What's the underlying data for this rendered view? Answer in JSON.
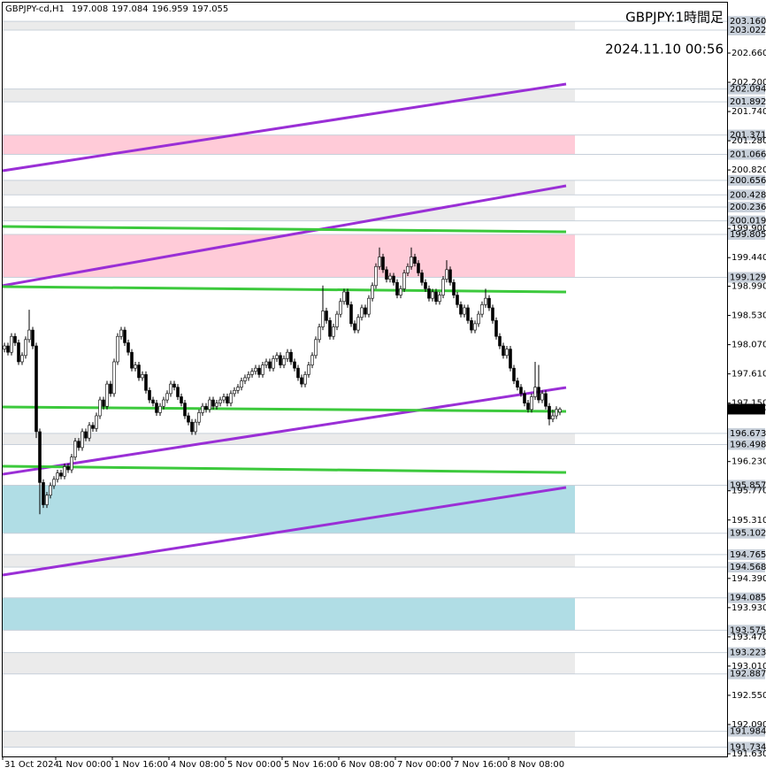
{
  "chart_data": {
    "type": "candlestick",
    "title": "GBPJPY-cd,H1",
    "annotations": [
      "GBPJPY:1時間足",
      "2024.11.10 00:56"
    ],
    "up_color": "#ffffff",
    "down_color": "#000000",
    "current_price_color": "#000000",
    "ylim": [
      191.588,
      203.454
    ],
    "yticks": [
      {
        "value": 202.66,
        "label": "202.660"
      },
      {
        "value": 202.2,
        "label": "202.200"
      },
      {
        "value": 201.74,
        "label": "201.740"
      },
      {
        "value": 201.28,
        "label": "201.280"
      },
      {
        "value": 200.82,
        "label": "200.820"
      },
      {
        "value": 199.9,
        "label": "199.900"
      },
      {
        "value": 199.44,
        "label": "199.440"
      },
      {
        "value": 198.99,
        "label": "198.990"
      },
      {
        "value": 198.53,
        "label": "198.530"
      },
      {
        "value": 198.07,
        "label": "198.070"
      },
      {
        "value": 197.61,
        "label": "197.610"
      },
      {
        "value": 197.15,
        "label": "197.150"
      },
      {
        "value": 196.23,
        "label": "196.230"
      },
      {
        "value": 195.77,
        "label": "195.770"
      },
      {
        "value": 195.31,
        "label": "195.310"
      },
      {
        "value": 194.39,
        "label": "194.390"
      },
      {
        "value": 193.93,
        "label": "193.930"
      },
      {
        "value": 193.47,
        "label": "193.470"
      },
      {
        "value": 193.01,
        "label": "193.010"
      },
      {
        "value": 192.55,
        "label": "192.550"
      },
      {
        "value": 192.09,
        "label": "192.090"
      },
      {
        "value": 191.63,
        "label": "191.630"
      }
    ],
    "xticks": [
      {
        "value": 0,
        "label": "31 Oct 2024"
      },
      {
        "value": 15,
        "label": "1 Nov 00:00"
      },
      {
        "value": 31,
        "label": "1 Nov 16:00"
      },
      {
        "value": 47,
        "label": "4 Nov 08:00"
      },
      {
        "value": 63,
        "label": "5 Nov 00:00"
      },
      {
        "value": 79,
        "label": "5 Nov 16:00"
      },
      {
        "value": 95,
        "label": "6 Nov 08:00"
      },
      {
        "value": 111,
        "label": "7 Nov 00:00"
      },
      {
        "value": 127,
        "label": "7 Nov 16:00"
      },
      {
        "value": 143,
        "label": "8 Nov 08:00"
      }
    ],
    "zones": [
      {
        "high": 203.16,
        "high_label": "203.160",
        "low": 203.022,
        "low_label": "203.022",
        "color": "#ebebeb"
      },
      {
        "high": 202.094,
        "high_label": "202.094",
        "low": 201.892,
        "low_label": "201.892",
        "color": "#ebebeb"
      },
      {
        "high": 201.371,
        "high_label": "201.371",
        "low": 201.066,
        "low_label": "201.066",
        "color": "#ffcbd8"
      },
      {
        "high": 200.656,
        "high_label": "200.656",
        "low": 200.428,
        "low_label": "200.428",
        "color": "#ebebeb"
      },
      {
        "high": 200.236,
        "high_label": "200.236",
        "low": 200.019,
        "low_label": "200.019",
        "color": "#ebebeb"
      },
      {
        "high": 199.805,
        "high_label": "199.805",
        "low": 199.129,
        "low_label": "199.129",
        "color": "#ffcbd8"
      },
      {
        "high": 196.673,
        "high_label": "196.673",
        "low": 196.498,
        "low_label": "196.498",
        "color": "#ebebeb"
      },
      {
        "high": 195.857,
        "high_label": "195.857",
        "low": 195.102,
        "low_label": "195.102",
        "color": "#b0dde5"
      },
      {
        "high": 194.765,
        "high_label": "194.765",
        "low": 194.568,
        "low_label": "194.568",
        "color": "#ebebeb"
      },
      {
        "high": 194.085,
        "high_label": "194.085",
        "low": 193.575,
        "low_label": "193.575",
        "color": "#b0dde5"
      },
      {
        "high": 193.223,
        "high_label": "193.223",
        "low": 192.887,
        "low_label": "192.887",
        "color": "#ebebeb"
      },
      {
        "high": 191.984,
        "high_label": "191.984",
        "low": 191.734,
        "low_label": "191.734",
        "color": "#ebebeb"
      }
    ],
    "lines": [
      {
        "color": "#9a2fd6",
        "start": 200.808,
        "end": 202.173
      },
      {
        "color": "#9a2fd6",
        "start": 199.0,
        "end": 200.571
      },
      {
        "color": "#9a2fd6",
        "start": 196.03,
        "end": 197.395
      },
      {
        "color": "#9a2fd6",
        "start": 194.443,
        "end": 195.822
      },
      {
        "color": "#3cc93c",
        "start": 199.93,
        "end": 199.847
      },
      {
        "color": "#3cc93c",
        "start": 198.983,
        "end": 198.9
      },
      {
        "color": "#3cc93c",
        "start": 197.089,
        "end": 197.019
      },
      {
        "color": "#3cc93c",
        "start": 196.156,
        "end": 196.058
      }
    ],
    "candles": [
      [
        198.0,
        198.1,
        197.95,
        198.05
      ],
      [
        198.05,
        198.1,
        197.9,
        197.95
      ],
      [
        197.95,
        198.25,
        197.9,
        198.2
      ],
      [
        198.2,
        198.25,
        198.05,
        198.1
      ],
      [
        198.1,
        198.15,
        197.75,
        197.8
      ],
      [
        197.8,
        197.95,
        197.75,
        197.9
      ],
      [
        197.9,
        198.2,
        197.85,
        198.15
      ],
      [
        198.15,
        198.62,
        198.1,
        198.3
      ],
      [
        198.3,
        198.35,
        198.0,
        198.05
      ],
      [
        198.05,
        198.1,
        196.6,
        196.7
      ],
      [
        196.7,
        196.75,
        195.4,
        195.9
      ],
      [
        195.9,
        195.95,
        195.5,
        195.55
      ],
      [
        195.55,
        195.75,
        195.5,
        195.7
      ],
      [
        195.7,
        195.9,
        195.65,
        195.85
      ],
      [
        195.85,
        196.0,
        195.8,
        195.95
      ],
      [
        195.95,
        196.1,
        195.9,
        196.05
      ],
      [
        196.05,
        196.1,
        195.95,
        196.0
      ],
      [
        196.0,
        196.2,
        195.95,
        196.15
      ],
      [
        196.15,
        196.2,
        196.05,
        196.1
      ],
      [
        196.1,
        196.35,
        196.05,
        196.3
      ],
      [
        196.3,
        196.6,
        196.25,
        196.55
      ],
      [
        196.55,
        196.6,
        196.4,
        196.45
      ],
      [
        196.45,
        196.75,
        196.4,
        196.7
      ],
      [
        196.7,
        196.75,
        196.55,
        196.6
      ],
      [
        196.6,
        196.85,
        196.55,
        196.8
      ],
      [
        196.8,
        196.85,
        196.7,
        196.75
      ],
      [
        196.75,
        197.0,
        196.7,
        196.95
      ],
      [
        196.95,
        197.25,
        196.9,
        197.2
      ],
      [
        197.2,
        197.25,
        197.05,
        197.1
      ],
      [
        197.1,
        197.5,
        197.05,
        197.45
      ],
      [
        197.45,
        197.5,
        197.25,
        197.3
      ],
      [
        197.3,
        197.85,
        197.25,
        197.8
      ],
      [
        197.8,
        198.25,
        197.75,
        198.2
      ],
      [
        198.2,
        198.35,
        198.15,
        198.3
      ],
      [
        198.3,
        198.35,
        198.05,
        198.1
      ],
      [
        198.1,
        198.15,
        197.9,
        197.95
      ],
      [
        197.95,
        198.0,
        197.65,
        197.7
      ],
      [
        197.7,
        197.8,
        197.65,
        197.75
      ],
      [
        197.75,
        197.8,
        197.5,
        197.55
      ],
      [
        197.55,
        197.65,
        197.5,
        197.6
      ],
      [
        197.6,
        197.65,
        197.3,
        197.35
      ],
      [
        197.35,
        197.4,
        197.15,
        197.2
      ],
      [
        197.2,
        197.25,
        197.1,
        197.15
      ],
      [
        197.15,
        197.2,
        196.95,
        197.0
      ],
      [
        197.0,
        197.15,
        196.95,
        197.1
      ],
      [
        197.1,
        197.25,
        197.05,
        197.2
      ],
      [
        197.2,
        197.35,
        197.15,
        197.3
      ],
      [
        197.3,
        197.5,
        197.25,
        197.45
      ],
      [
        197.45,
        197.5,
        197.35,
        197.4
      ],
      [
        197.4,
        197.45,
        197.2,
        197.25
      ],
      [
        197.25,
        197.3,
        197.1,
        197.15
      ],
      [
        197.15,
        197.2,
        196.9,
        196.95
      ],
      [
        196.95,
        197.0,
        196.8,
        196.85
      ],
      [
        196.85,
        196.9,
        196.65,
        196.7
      ],
      [
        196.7,
        196.9,
        196.65,
        196.85
      ],
      [
        196.85,
        197.05,
        196.8,
        197.0
      ],
      [
        197.0,
        197.15,
        196.95,
        197.1
      ],
      [
        197.1,
        197.15,
        197.0,
        197.05
      ],
      [
        197.05,
        197.25,
        197.0,
        197.2
      ],
      [
        197.2,
        197.25,
        197.05,
        197.1
      ],
      [
        197.1,
        197.2,
        197.05,
        197.15
      ],
      [
        197.15,
        197.25,
        197.1,
        197.2
      ],
      [
        197.2,
        197.3,
        197.15,
        197.25
      ],
      [
        197.25,
        197.3,
        197.1,
        197.15
      ],
      [
        197.15,
        197.35,
        197.1,
        197.3
      ],
      [
        197.3,
        197.4,
        197.25,
        197.35
      ],
      [
        197.35,
        197.45,
        197.3,
        197.4
      ],
      [
        197.4,
        197.55,
        197.35,
        197.5
      ],
      [
        197.5,
        197.6,
        197.45,
        197.55
      ],
      [
        197.55,
        197.65,
        197.5,
        197.6
      ],
      [
        197.6,
        197.7,
        197.55,
        197.65
      ],
      [
        197.65,
        197.75,
        197.6,
        197.7
      ],
      [
        197.7,
        197.75,
        197.55,
        197.6
      ],
      [
        197.6,
        197.8,
        197.55,
        197.75
      ],
      [
        197.75,
        197.85,
        197.7,
        197.8
      ],
      [
        197.8,
        197.85,
        197.65,
        197.7
      ],
      [
        197.7,
        197.9,
        197.65,
        197.85
      ],
      [
        197.85,
        197.95,
        197.8,
        197.9
      ],
      [
        197.9,
        197.95,
        197.7,
        197.75
      ],
      [
        197.75,
        197.9,
        197.7,
        197.85
      ],
      [
        197.85,
        198.0,
        197.8,
        197.95
      ],
      [
        197.95,
        198.0,
        197.75,
        197.8
      ],
      [
        197.8,
        197.85,
        197.65,
        197.7
      ],
      [
        197.7,
        197.75,
        197.5,
        197.55
      ],
      [
        197.55,
        197.6,
        197.4,
        197.45
      ],
      [
        197.45,
        197.65,
        197.4,
        197.6
      ],
      [
        197.6,
        197.8,
        197.55,
        197.75
      ],
      [
        197.75,
        197.95,
        197.7,
        197.9
      ],
      [
        197.9,
        198.2,
        197.85,
        198.15
      ],
      [
        198.15,
        198.4,
        198.1,
        198.35
      ],
      [
        198.35,
        199.0,
        198.3,
        198.6
      ],
      [
        198.6,
        198.65,
        198.4,
        198.45
      ],
      [
        198.45,
        198.5,
        198.15,
        198.2
      ],
      [
        198.2,
        198.4,
        198.15,
        198.35
      ],
      [
        198.35,
        198.6,
        198.3,
        198.55
      ],
      [
        198.55,
        198.8,
        198.5,
        198.75
      ],
      [
        198.75,
        198.95,
        198.7,
        198.9
      ],
      [
        198.9,
        198.95,
        198.65,
        198.7
      ],
      [
        198.7,
        198.75,
        198.35,
        198.4
      ],
      [
        198.4,
        198.45,
        198.25,
        198.3
      ],
      [
        198.3,
        198.55,
        198.25,
        198.5
      ],
      [
        198.5,
        198.7,
        198.45,
        198.65
      ],
      [
        198.65,
        198.7,
        198.5,
        198.55
      ],
      [
        198.55,
        198.85,
        198.5,
        198.8
      ],
      [
        198.8,
        199.05,
        198.75,
        199.0
      ],
      [
        199.0,
        199.35,
        198.95,
        199.3
      ],
      [
        199.3,
        199.6,
        199.25,
        199.45
      ],
      [
        199.45,
        199.5,
        199.2,
        199.25
      ],
      [
        199.25,
        199.3,
        199.05,
        199.1
      ],
      [
        199.1,
        199.2,
        199.05,
        199.15
      ],
      [
        199.15,
        199.2,
        199.0,
        199.05
      ],
      [
        199.05,
        199.1,
        198.8,
        198.85
      ],
      [
        198.85,
        199.0,
        198.8,
        198.95
      ],
      [
        198.95,
        199.25,
        198.9,
        199.2
      ],
      [
        199.2,
        199.35,
        199.15,
        199.3
      ],
      [
        199.3,
        199.6,
        199.25,
        199.45
      ],
      [
        199.45,
        199.5,
        199.3,
        199.35
      ],
      [
        199.35,
        199.4,
        199.15,
        199.2
      ],
      [
        199.2,
        199.25,
        199.0,
        199.05
      ],
      [
        199.05,
        199.1,
        198.9,
        198.95
      ],
      [
        198.95,
        199.0,
        198.75,
        198.8
      ],
      [
        198.8,
        198.95,
        198.75,
        198.9
      ],
      [
        198.9,
        198.95,
        198.7,
        198.75
      ],
      [
        198.75,
        198.9,
        198.7,
        198.85
      ],
      [
        198.85,
        199.15,
        198.8,
        199.1
      ],
      [
        199.1,
        199.4,
        199.05,
        199.25
      ],
      [
        199.25,
        199.3,
        199.0,
        199.05
      ],
      [
        199.05,
        199.1,
        198.8,
        198.85
      ],
      [
        198.85,
        198.9,
        198.65,
        198.7
      ],
      [
        198.7,
        198.75,
        198.5,
        198.55
      ],
      [
        198.55,
        198.7,
        198.5,
        198.65
      ],
      [
        198.65,
        198.7,
        198.4,
        198.45
      ],
      [
        198.45,
        198.5,
        198.25,
        198.3
      ],
      [
        198.3,
        198.45,
        198.25,
        198.4
      ],
      [
        198.4,
        198.6,
        198.35,
        198.55
      ],
      [
        198.55,
        198.75,
        198.5,
        198.7
      ],
      [
        198.7,
        198.95,
        198.65,
        198.8
      ],
      [
        198.8,
        198.85,
        198.6,
        198.65
      ],
      [
        198.65,
        198.7,
        198.4,
        198.45
      ],
      [
        198.45,
        198.5,
        198.15,
        198.2
      ],
      [
        198.2,
        198.25,
        198.0,
        198.05
      ],
      [
        198.05,
        198.1,
        197.85,
        197.9
      ],
      [
        197.9,
        198.05,
        197.85,
        198.0
      ],
      [
        198.0,
        198.05,
        197.65,
        197.7
      ],
      [
        197.7,
        197.75,
        197.45,
        197.5
      ],
      [
        197.5,
        197.55,
        197.35,
        197.4
      ],
      [
        197.4,
        197.45,
        197.25,
        197.3
      ],
      [
        197.3,
        197.35,
        197.1,
        197.15
      ],
      [
        197.15,
        197.2,
        197.0,
        197.05
      ],
      [
        197.05,
        197.3,
        197.0,
        197.25
      ],
      [
        197.25,
        197.8,
        197.2,
        197.4
      ],
      [
        197.4,
        197.75,
        197.15,
        197.2
      ],
      [
        197.2,
        197.35,
        197.15,
        197.3
      ],
      [
        197.3,
        197.35,
        197.05,
        197.1
      ],
      [
        197.1,
        197.15,
        196.8,
        196.9
      ],
      [
        196.9,
        197.05,
        196.85,
        196.95
      ],
      [
        196.95,
        197.1,
        196.9,
        197.05
      ],
      [
        197.008,
        197.084,
        196.959,
        197.055
      ]
    ]
  }
}
